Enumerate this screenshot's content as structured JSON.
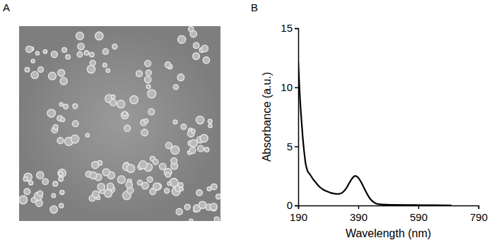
{
  "figure": {
    "panel_labels": [
      "A",
      "B"
    ]
  },
  "chart_data": {
    "type": "line",
    "x_label": "Wavelength (nm)",
    "y_label": "Absorbance (a.u.)",
    "x": [
      190,
      195,
      200,
      205,
      210,
      215,
      220,
      230,
      240,
      250,
      260,
      270,
      280,
      290,
      300,
      310,
      320,
      330,
      340,
      350,
      360,
      370,
      380,
      390,
      400,
      410,
      420,
      430,
      440,
      450,
      470,
      500,
      550,
      600,
      650,
      700
    ],
    "values": [
      12.2,
      9.5,
      7.5,
      5.8,
      4.5,
      3.5,
      3.0,
      2.6,
      2.2,
      1.9,
      1.6,
      1.4,
      1.25,
      1.15,
      1.05,
      1.0,
      0.97,
      1.0,
      1.15,
      1.45,
      1.9,
      2.3,
      2.5,
      2.35,
      1.95,
      1.45,
      0.95,
      0.55,
      0.3,
      0.15,
      0.08,
      0.05,
      0.04,
      0.03,
      0.02,
      0.01
    ],
    "color": "#000000",
    "xlim": [
      190,
      790
    ],
    "xticks": [
      190,
      390,
      590,
      790
    ],
    "ylim": [
      0,
      15
    ],
    "yticks": [
      0,
      5,
      10,
      15
    ],
    "grid": false
  }
}
